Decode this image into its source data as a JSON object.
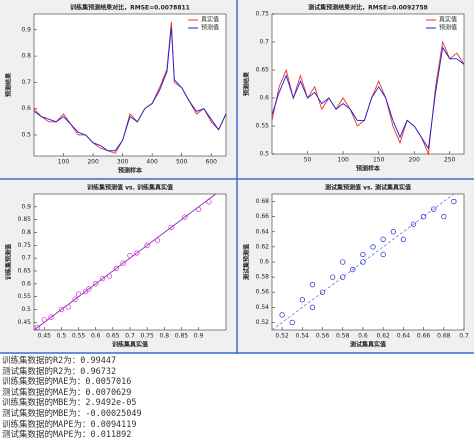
{
  "chart_data": [
    {
      "type": "line",
      "title": "训练集预测结果对比，RMSE=0.0078811",
      "xlabel": "预测样本",
      "ylabel": "预测结果",
      "x": [
        0,
        25,
        50,
        75,
        100,
        125,
        150,
        175,
        200,
        225,
        250,
        275,
        300,
        325,
        350,
        375,
        400,
        425,
        450,
        465,
        475,
        500,
        525,
        550,
        575,
        600,
        625,
        650
      ],
      "series": [
        {
          "name": "真实值",
          "color": "#e8332b",
          "values": [
            0.6,
            0.57,
            0.55,
            0.55,
            0.58,
            0.54,
            0.5,
            0.5,
            0.47,
            0.45,
            0.44,
            0.43,
            0.48,
            0.58,
            0.55,
            0.6,
            0.62,
            0.68,
            0.75,
            0.93,
            0.7,
            0.68,
            0.63,
            0.58,
            0.6,
            0.55,
            0.52,
            0.58
          ]
        },
        {
          "name": "预测值",
          "color": "#1f1fd6",
          "values": [
            0.59,
            0.57,
            0.56,
            0.55,
            0.57,
            0.54,
            0.51,
            0.5,
            0.47,
            0.46,
            0.44,
            0.44,
            0.48,
            0.57,
            0.55,
            0.6,
            0.62,
            0.67,
            0.74,
            0.91,
            0.71,
            0.68,
            0.63,
            0.59,
            0.6,
            0.56,
            0.52,
            0.58
          ]
        }
      ],
      "xlim": [
        0,
        650
      ],
      "xticks": [
        100,
        200,
        300,
        400,
        500,
        600
      ],
      "ylim": [
        0.42,
        0.96
      ],
      "yticks": [
        0.5,
        0.6,
        0.7,
        0.8,
        0.9
      ]
    },
    {
      "type": "line",
      "title": "测试集预测结果对比，RMSE=0.0092758",
      "xlabel": "预测样本",
      "ylabel": "预测结果",
      "x": [
        0,
        10,
        20,
        30,
        40,
        50,
        60,
        70,
        80,
        90,
        100,
        110,
        120,
        130,
        140,
        150,
        160,
        170,
        180,
        190,
        200,
        210,
        220,
        230,
        240,
        250,
        260,
        270
      ],
      "series": [
        {
          "name": "真实值",
          "color": "#e8332b",
          "values": [
            0.56,
            0.62,
            0.65,
            0.6,
            0.64,
            0.6,
            0.62,
            0.58,
            0.6,
            0.58,
            0.6,
            0.58,
            0.55,
            0.56,
            0.6,
            0.63,
            0.6,
            0.55,
            0.52,
            0.56,
            0.55,
            0.53,
            0.5,
            0.62,
            0.7,
            0.67,
            0.68,
            0.66
          ]
        },
        {
          "name": "预测值",
          "color": "#1f1fd6",
          "values": [
            0.57,
            0.61,
            0.64,
            0.6,
            0.63,
            0.6,
            0.61,
            0.59,
            0.6,
            0.58,
            0.59,
            0.58,
            0.56,
            0.56,
            0.6,
            0.62,
            0.6,
            0.56,
            0.53,
            0.56,
            0.55,
            0.53,
            0.51,
            0.61,
            0.69,
            0.67,
            0.67,
            0.66
          ]
        }
      ],
      "xlim": [
        0,
        270
      ],
      "xticks": [
        50,
        100,
        150,
        200,
        250
      ],
      "ylim": [
        0.5,
        0.75
      ],
      "yticks": [
        0.5,
        0.55,
        0.6,
        0.65,
        0.7,
        0.75
      ]
    },
    {
      "type": "scatter",
      "title": "训练集预测值 vs. 训练集真实值",
      "xlabel": "训练集真实值",
      "ylabel": "训练集预测值",
      "color": "#e020e0",
      "x": [
        0.43,
        0.45,
        0.47,
        0.5,
        0.52,
        0.54,
        0.55,
        0.57,
        0.58,
        0.6,
        0.62,
        0.64,
        0.66,
        0.68,
        0.7,
        0.72,
        0.75,
        0.78,
        0.82,
        0.86,
        0.9,
        0.93
      ],
      "values": [
        0.43,
        0.46,
        0.47,
        0.5,
        0.51,
        0.54,
        0.56,
        0.57,
        0.58,
        0.6,
        0.62,
        0.63,
        0.66,
        0.68,
        0.71,
        0.72,
        0.75,
        0.77,
        0.82,
        0.86,
        0.89,
        0.92
      ],
      "xlim": [
        0.42,
        0.98
      ],
      "xticks": [
        0.45,
        0.5,
        0.55,
        0.6,
        0.65,
        0.7,
        0.75,
        0.8,
        0.85,
        0.9
      ],
      "ylim": [
        0.42,
        0.95
      ],
      "yticks": [
        0.45,
        0.5,
        0.55,
        0.6,
        0.65,
        0.7,
        0.75,
        0.8,
        0.85,
        0.9
      ]
    },
    {
      "type": "scatter",
      "title": "测试集预测值 vs. 测试集真实值",
      "xlabel": "测试集真实值",
      "ylabel": "测试集预测值",
      "color": "#2020d0",
      "x": [
        0.52,
        0.53,
        0.54,
        0.55,
        0.55,
        0.56,
        0.57,
        0.58,
        0.58,
        0.59,
        0.6,
        0.6,
        0.61,
        0.62,
        0.62,
        0.63,
        0.64,
        0.65,
        0.66,
        0.67,
        0.68,
        0.69
      ],
      "values": [
        0.53,
        0.52,
        0.55,
        0.54,
        0.57,
        0.56,
        0.58,
        0.58,
        0.6,
        0.59,
        0.61,
        0.6,
        0.62,
        0.63,
        0.61,
        0.64,
        0.63,
        0.65,
        0.66,
        0.67,
        0.66,
        0.68
      ],
      "xlim": [
        0.51,
        0.7
      ],
      "xticks": [
        0.52,
        0.54,
        0.56,
        0.58,
        0.6,
        0.62,
        0.64,
        0.66,
        0.68,
        0.7
      ],
      "ylim": [
        0.51,
        0.69
      ],
      "yticks": [
        0.52,
        0.54,
        0.56,
        0.58,
        0.6,
        0.62,
        0.64,
        0.66,
        0.68
      ]
    }
  ],
  "console": {
    "lines": [
      "训练集数据的R2为：0.99447",
      "测试集数据的R2为：0.96732",
      "训练集数据的MAE为：0.0057016",
      "测试集数据的MAE为：0.0070629",
      "训练集数据的MBE为：2.9492e-05",
      "测试集数据的MBE为：-0.00025049",
      "训练集数据的MAPE为：0.0094119",
      "测试集数据的MAPE为：0.011892"
    ]
  }
}
